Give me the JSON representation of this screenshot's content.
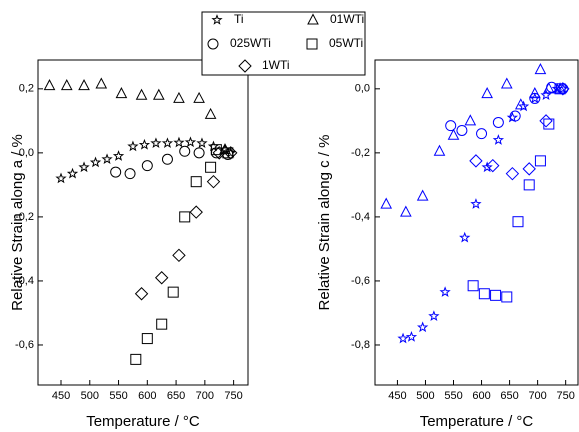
{
  "chart_data": [
    {
      "type": "scatter",
      "color": "#000000",
      "xlabel": "Temperature / °C",
      "ylabel": "Relative Strain along a / %",
      "xlim": [
        410,
        775
      ],
      "ylim": [
        -0.725,
        0.29
      ],
      "xticks": [
        450,
        500,
        550,
        600,
        650,
        700,
        750
      ],
      "yticks": [
        {
          "value": 0.2,
          "label": "0,2"
        },
        {
          "value": 0.0,
          "label": "0,0"
        },
        {
          "value": -0.2,
          "label": "-0,2"
        },
        {
          "value": -0.4,
          "label": "-0,4"
        },
        {
          "value": -0.6,
          "label": "-0,6"
        }
      ],
      "series": [
        {
          "name": "Ti",
          "marker": "star",
          "x": [
            450,
            470,
            490,
            510,
            530,
            550,
            575,
            595,
            615,
            635,
            655,
            675,
            695,
            715,
            735,
            745
          ],
          "values": [
            -0.08,
            -0.065,
            -0.045,
            -0.03,
            -0.02,
            -0.01,
            0.02,
            0.025,
            0.03,
            0.03,
            0.032,
            0.033,
            0.03,
            0.02,
            0.01,
            0.0
          ]
        },
        {
          "name": "01WTi",
          "marker": "triangle",
          "x": [
            430,
            460,
            490,
            520,
            555,
            590,
            620,
            655,
            690,
            710,
            735
          ],
          "values": [
            0.21,
            0.21,
            0.21,
            0.215,
            0.185,
            0.18,
            0.18,
            0.17,
            0.17,
            0.12,
            0.01
          ]
        },
        {
          "name": "025WTi",
          "marker": "circle",
          "x": [
            545,
            570,
            600,
            635,
            665,
            690,
            720,
            740
          ],
          "values": [
            -0.06,
            -0.065,
            -0.04,
            -0.02,
            0.005,
            0.0,
            0.0,
            -0.005
          ]
        },
        {
          "name": "05WTi",
          "marker": "square",
          "x": [
            580,
            600,
            625,
            645,
            665,
            685,
            710,
            720,
            740
          ],
          "values": [
            -0.645,
            -0.58,
            -0.535,
            -0.435,
            -0.2,
            -0.09,
            -0.045,
            0.01,
            0.0
          ]
        },
        {
          "name": "1WTi",
          "marker": "diamond",
          "x": [
            590,
            625,
            655,
            685,
            715,
            725,
            745
          ],
          "values": [
            -0.44,
            -0.39,
            -0.32,
            -0.185,
            -0.09,
            0.0,
            0.0
          ]
        }
      ]
    },
    {
      "type": "scatter",
      "color": "#0000ff",
      "xlabel": "Temperature / °C",
      "ylabel": "Relative Strain along c / %",
      "xlim": [
        410,
        772
      ],
      "ylim": [
        -0.925,
        0.09
      ],
      "xticks": [
        450,
        500,
        550,
        600,
        650,
        700,
        750
      ],
      "yticks": [
        {
          "value": 0.0,
          "label": "0,0"
        },
        {
          "value": -0.2,
          "label": "-0,2"
        },
        {
          "value": -0.4,
          "label": "-0,4"
        },
        {
          "value": -0.6,
          "label": "-0,6"
        },
        {
          "value": -0.8,
          "label": "-0,8"
        }
      ],
      "series": [
        {
          "marker": "star",
          "x": [
            460,
            475,
            495,
            515,
            535,
            570,
            590,
            610,
            630,
            655,
            675,
            695,
            715,
            735,
            745
          ],
          "values": [
            -0.78,
            -0.775,
            -0.745,
            -0.71,
            -0.635,
            -0.465,
            -0.36,
            -0.245,
            -0.16,
            -0.09,
            -0.055,
            -0.03,
            -0.02,
            0.0,
            0.0
          ]
        },
        {
          "marker": "triangle",
          "x": [
            430,
            465,
            495,
            525,
            550,
            580,
            610,
            645,
            670,
            695,
            705,
            720,
            740
          ],
          "values": [
            -0.36,
            -0.385,
            -0.335,
            -0.195,
            -0.145,
            -0.1,
            -0.015,
            0.015,
            -0.05,
            -0.015,
            0.06,
            0.0,
            0.0
          ]
        },
        {
          "marker": "circle",
          "x": [
            545,
            565,
            600,
            630,
            660,
            695,
            725,
            745
          ],
          "values": [
            -0.115,
            -0.13,
            -0.14,
            -0.105,
            -0.085,
            -0.03,
            0.005,
            0.0
          ]
        },
        {
          "marker": "square",
          "x": [
            585,
            605,
            625,
            645,
            665,
            685,
            705,
            720,
            740
          ],
          "values": [
            -0.615,
            -0.64,
            -0.645,
            -0.65,
            -0.415,
            -0.3,
            -0.225,
            -0.11,
            0.0
          ]
        },
        {
          "marker": "diamond",
          "x": [
            590,
            620,
            655,
            685,
            715,
            745
          ],
          "values": [
            -0.225,
            -0.24,
            -0.265,
            -0.25,
            -0.1,
            0.0
          ]
        }
      ]
    }
  ]
}
